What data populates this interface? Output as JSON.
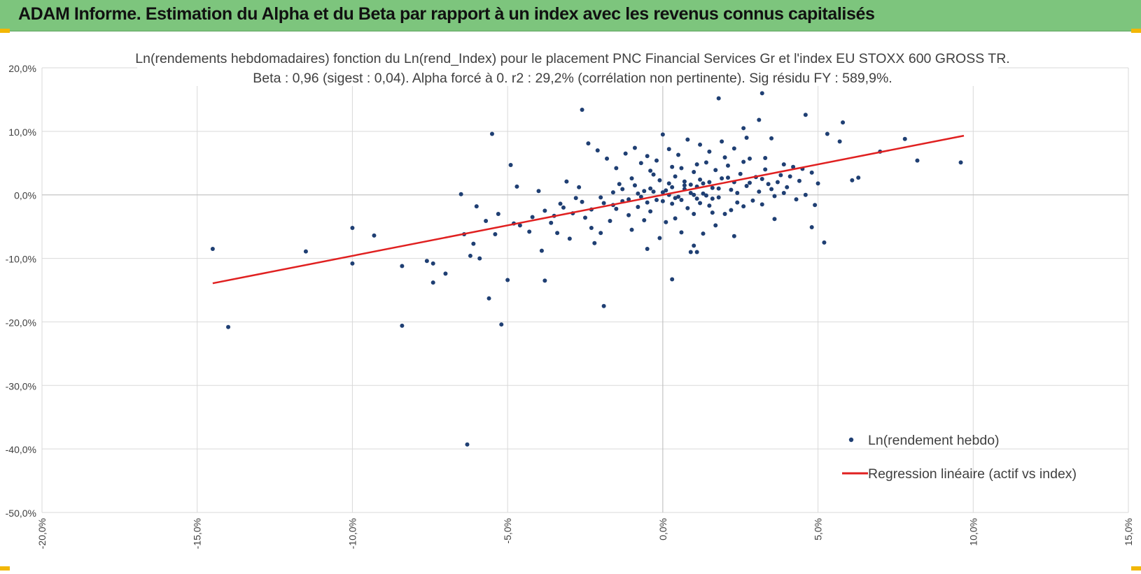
{
  "header": {
    "title": "ADAM Informe. Estimation du Alpha et du Beta par rapport à un index avec les revenus connus capitalisés"
  },
  "colors": {
    "header_bg": "#7dc57d",
    "points": "#1f3f73",
    "regression": "#e02020",
    "grid": "#d9d9d9"
  },
  "chart_data": {
    "type": "scatter",
    "title": "Ln(rendements hebdomadaires) fonction du Ln(rend_Index) pour le placement PNC Financial Services Gr et l'index EU STOXX 600 GROSS TR.",
    "subtitle": "Beta : 0,96 (sigest : 0,04). Alpha forcé à 0. r2 : 29,2% (corrélation non pertinente). Sig résidu FY : 589,9%.",
    "xlabel": "",
    "ylabel": "",
    "xlim": [
      -20,
      15
    ],
    "ylim": [
      -50,
      20
    ],
    "x_ticks": [
      -20,
      -15,
      -10,
      -5,
      0,
      5,
      10,
      15
    ],
    "y_ticks": [
      20,
      10,
      0,
      -10,
      -20,
      -30,
      -40,
      -50
    ],
    "x_tick_labels": [
      "-20,0%",
      "-15,0%",
      "-10,0%",
      "-5,0%",
      "0,0%",
      "5,0%",
      "10,0%",
      "15,0%"
    ],
    "y_tick_labels": [
      "20,0%",
      "10,0%",
      "0,0%",
      "-10,0%",
      "-20,0%",
      "-30,0%",
      "-40,0%",
      "-50,0%"
    ],
    "grid": true,
    "legend": {
      "placement": "bottom-right"
    },
    "series": [
      {
        "name": "Ln(rendement hebdo)",
        "kind": "points",
        "color": "#1f3f73",
        "points": [
          [
            -14.5,
            -8.5
          ],
          [
            -14.0,
            -20.8
          ],
          [
            -11.5,
            -8.9
          ],
          [
            -10.0,
            -5.2
          ],
          [
            -10.0,
            -10.8
          ],
          [
            -9.3,
            -6.4
          ],
          [
            -8.4,
            -11.2
          ],
          [
            -8.4,
            -20.6
          ],
          [
            -7.6,
            -10.4
          ],
          [
            -7.4,
            -10.8
          ],
          [
            -7.4,
            -13.8
          ],
          [
            -7.0,
            -12.4
          ],
          [
            -6.5,
            0.1
          ],
          [
            -6.4,
            -6.2
          ],
          [
            -6.3,
            -39.3
          ],
          [
            -6.2,
            -9.6
          ],
          [
            -6.0,
            -1.8
          ],
          [
            -5.9,
            -10.0
          ],
          [
            -5.6,
            -16.3
          ],
          [
            -5.5,
            9.6
          ],
          [
            -5.0,
            -13.4
          ],
          [
            -5.2,
            -20.4
          ],
          [
            -4.9,
            4.7
          ],
          [
            -3.8,
            -13.5
          ],
          [
            -2.6,
            13.4
          ],
          [
            -1.9,
            -17.5
          ],
          [
            0.0,
            9.5
          ],
          [
            0.3,
            -13.3
          ],
          [
            1.8,
            15.2
          ],
          [
            2.6,
            10.5
          ],
          [
            3.1,
            11.8
          ],
          [
            3.2,
            16.0
          ],
          [
            3.5,
            8.9
          ],
          [
            4.6,
            12.6
          ],
          [
            5.3,
            9.6
          ],
          [
            5.8,
            11.4
          ],
          [
            5.7,
            8.4
          ],
          [
            6.1,
            2.3
          ],
          [
            6.3,
            2.7
          ],
          [
            7.0,
            6.8
          ],
          [
            7.8,
            8.8
          ],
          [
            8.2,
            5.4
          ],
          [
            9.6,
            5.1
          ],
          [
            4.9,
            -1.6
          ],
          [
            4.8,
            -5.1
          ],
          [
            5.2,
            -7.5
          ],
          [
            3.6,
            -3.8
          ],
          [
            2.3,
            -6.5
          ],
          [
            1.1,
            -9.0
          ],
          [
            0.9,
            -9.0
          ],
          [
            1.0,
            -8.0
          ],
          [
            -0.5,
            -8.5
          ],
          [
            -2.2,
            -7.6
          ],
          [
            -3.0,
            -6.9
          ],
          [
            -3.4,
            -6.0
          ],
          [
            -3.9,
            -8.8
          ],
          [
            -4.3,
            -5.8
          ],
          [
            -4.6,
            -4.8
          ],
          [
            -4.2,
            -3.5
          ],
          [
            -3.6,
            -4.4
          ],
          [
            -3.8,
            -2.5
          ],
          [
            -3.3,
            -1.4
          ],
          [
            -2.8,
            -0.5
          ],
          [
            -2.5,
            -3.6
          ],
          [
            -2.3,
            -5.2
          ],
          [
            -2.0,
            -6.0
          ],
          [
            -1.7,
            -4.1
          ],
          [
            -1.5,
            -2.2
          ],
          [
            -1.3,
            -1.0
          ],
          [
            -1.1,
            -3.2
          ],
          [
            -0.9,
            1.5
          ],
          [
            -0.8,
            -1.9
          ],
          [
            -0.6,
            0.6
          ],
          [
            -0.4,
            -2.6
          ],
          [
            -0.3,
            3.2
          ],
          [
            -0.2,
            -0.8
          ],
          [
            0.0,
            0.4
          ],
          [
            0.1,
            -4.3
          ],
          [
            0.2,
            1.8
          ],
          [
            0.3,
            -1.4
          ],
          [
            0.4,
            2.9
          ],
          [
            0.5,
            -0.3
          ],
          [
            0.6,
            4.2
          ],
          [
            0.7,
            0.9
          ],
          [
            0.8,
            -2.1
          ],
          [
            0.9,
            1.6
          ],
          [
            1.0,
            3.6
          ],
          [
            1.1,
            -0.6
          ],
          [
            1.2,
            2.4
          ],
          [
            1.3,
            0.2
          ],
          [
            1.4,
            5.1
          ],
          [
            1.5,
            -1.7
          ],
          [
            1.6,
            1.1
          ],
          [
            1.7,
            3.9
          ],
          [
            1.8,
            -0.4
          ],
          [
            1.9,
            2.6
          ],
          [
            2.0,
            -3.0
          ],
          [
            2.1,
            4.6
          ],
          [
            2.2,
            0.8
          ],
          [
            2.3,
            2.0
          ],
          [
            2.4,
            -1.2
          ],
          [
            2.5,
            3.3
          ],
          [
            2.7,
            1.4
          ],
          [
            2.8,
            5.7
          ],
          [
            2.9,
            -0.9
          ],
          [
            3.0,
            2.8
          ],
          [
            3.1,
            0.5
          ],
          [
            3.3,
            4.0
          ],
          [
            3.4,
            1.7
          ],
          [
            3.6,
            -0.2
          ],
          [
            3.8,
            3.1
          ],
          [
            4.0,
            1.2
          ],
          [
            4.2,
            4.4
          ],
          [
            4.4,
            2.2
          ],
          [
            4.6,
            0.0
          ],
          [
            4.8,
            3.5
          ],
          [
            5.0,
            1.8
          ],
          [
            -2.4,
            8.1
          ],
          [
            -2.1,
            7.0
          ],
          [
            -1.8,
            5.7
          ],
          [
            -1.5,
            4.2
          ],
          [
            -1.2,
            6.5
          ],
          [
            -0.9,
            7.4
          ],
          [
            -0.7,
            5.0
          ],
          [
            -0.5,
            6.1
          ],
          [
            -0.2,
            5.4
          ],
          [
            0.2,
            7.2
          ],
          [
            0.5,
            6.3
          ],
          [
            0.8,
            8.7
          ],
          [
            1.2,
            7.9
          ],
          [
            1.5,
            6.8
          ],
          [
            1.9,
            8.4
          ],
          [
            2.3,
            7.3
          ],
          [
            2.7,
            9.0
          ],
          [
            -3.1,
            2.1
          ],
          [
            -2.7,
            1.2
          ],
          [
            -4.0,
            0.6
          ],
          [
            -4.7,
            1.3
          ],
          [
            -5.3,
            -3.0
          ],
          [
            -5.7,
            -4.1
          ],
          [
            -6.1,
            -7.7
          ],
          [
            -5.4,
            -6.2
          ],
          [
            -4.8,
            -4.5
          ],
          [
            -1.0,
            -5.5
          ],
          [
            -0.1,
            -6.8
          ],
          [
            0.6,
            -5.9
          ],
          [
            1.3,
            -6.1
          ],
          [
            1.7,
            -4.8
          ],
          [
            -0.6,
            -4.0
          ],
          [
            0.4,
            -3.7
          ],
          [
            1.0,
            -3.0
          ],
          [
            1.6,
            -2.8
          ],
          [
            2.2,
            -2.4
          ],
          [
            2.6,
            -1.8
          ],
          [
            3.2,
            -1.5
          ],
          [
            3.5,
            0.9
          ],
          [
            3.9,
            0.3
          ],
          [
            4.3,
            -0.7
          ],
          [
            -1.9,
            -1.3
          ],
          [
            -1.6,
            0.4
          ],
          [
            -1.4,
            1.7
          ],
          [
            -1.0,
            2.6
          ],
          [
            -0.7,
            -0.3
          ],
          [
            -0.4,
            1.0
          ],
          [
            -0.1,
            2.3
          ],
          [
            0.2,
            0.0
          ],
          [
            0.7,
            2.1
          ],
          [
            1.1,
            1.3
          ],
          [
            1.4,
            -0.1
          ],
          [
            1.8,
            1.0
          ],
          [
            2.1,
            2.7
          ],
          [
            2.4,
            0.3
          ],
          [
            2.8,
            1.9
          ],
          [
            3.2,
            2.5
          ],
          [
            3.7,
            2.0
          ],
          [
            4.1,
            2.9
          ],
          [
            0.0,
            -1.0
          ],
          [
            0.3,
            1.2
          ],
          [
            0.6,
            -0.8
          ],
          [
            0.9,
            0.3
          ],
          [
            1.2,
            -1.3
          ],
          [
            1.5,
            2.0
          ],
          [
            0.1,
            0.7
          ],
          [
            0.4,
            -0.5
          ],
          [
            0.7,
            1.5
          ],
          [
            1.0,
            0.0
          ],
          [
            1.3,
            1.8
          ],
          [
            1.6,
            -0.6
          ],
          [
            -0.3,
            0.5
          ],
          [
            -0.5,
            -1.2
          ],
          [
            -0.8,
            0.2
          ],
          [
            -1.1,
            -0.7
          ],
          [
            -1.3,
            0.9
          ],
          [
            -1.6,
            -1.6
          ],
          [
            -2.0,
            -0.4
          ],
          [
            -2.3,
            -2.3
          ],
          [
            -2.6,
            -1.1
          ],
          [
            -2.9,
            -2.9
          ],
          [
            -3.2,
            -2.0
          ],
          [
            -3.5,
            -3.3
          ],
          [
            1.1,
            4.8
          ],
          [
            0.3,
            4.4
          ],
          [
            -0.4,
            3.8
          ],
          [
            2.0,
            5.9
          ],
          [
            2.6,
            5.2
          ],
          [
            3.3,
            5.8
          ],
          [
            3.9,
            4.8
          ],
          [
            4.5,
            4.1
          ]
        ]
      },
      {
        "name": "Regression linéaire (actif vs index)",
        "kind": "line",
        "color": "#e02020",
        "slope": 0.96,
        "x_range": [
          -14.5,
          9.7
        ]
      }
    ]
  }
}
